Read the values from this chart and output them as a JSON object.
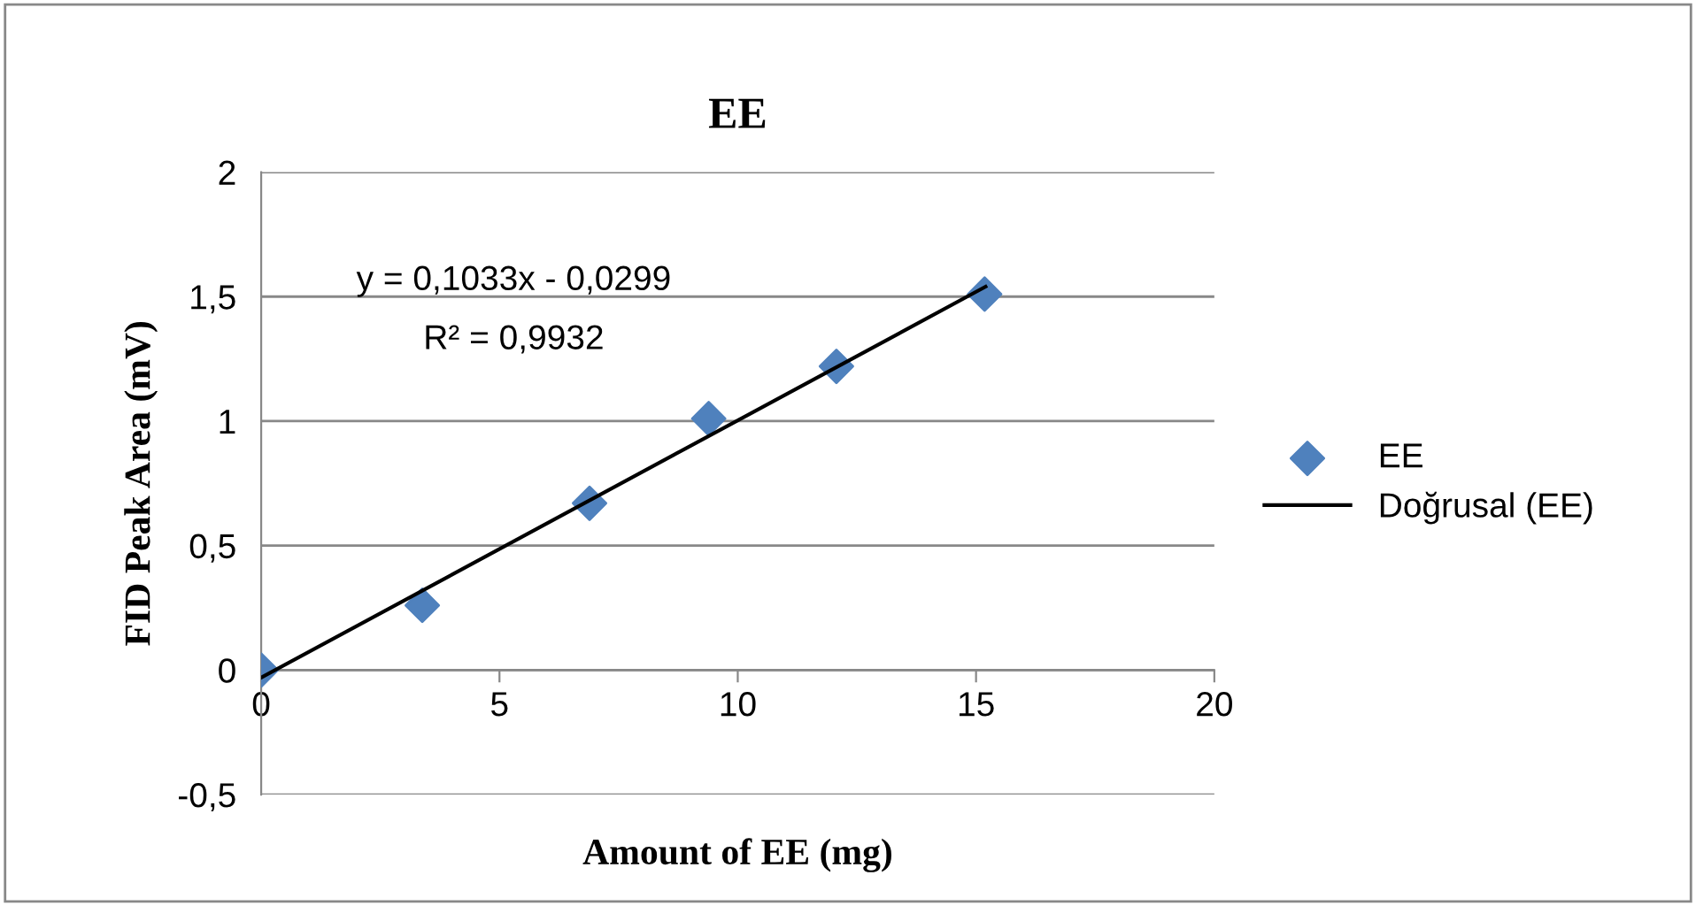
{
  "chart_data": {
    "type": "scatter",
    "title": "EE",
    "xlabel": "Amount of EE (mg)",
    "ylabel": "FID Peak Area (mV)",
    "series": [
      {
        "name": "EE",
        "color": "#4f81bd",
        "marker": "diamond",
        "x": [
          0,
          3.38,
          6.89,
          9.39,
          12.07,
          15.18
        ],
        "values": [
          0,
          0.26,
          0.67,
          1.01,
          1.22,
          1.51
        ]
      },
      {
        "name": "Doğrusal (EE)",
        "type": "line",
        "color": "#000000",
        "marker": "none",
        "line_style": "solid",
        "x": [
          0,
          15.2
        ],
        "values": [
          -0.03,
          1.54
        ]
      }
    ],
    "annotations": [
      "y = 0,1033x - 0,0299",
      "R² = 0,9932"
    ],
    "xlim": [
      0,
      20
    ],
    "xticks": [
      0,
      5,
      10,
      15,
      20
    ],
    "ylim": [
      -0.5,
      2
    ],
    "yticks": [
      {
        "value": -0.5,
        "label": "-0,5"
      },
      0,
      {
        "value": 0.5,
        "label": "0,5"
      },
      1,
      {
        "value": 1.5,
        "label": "1,5"
      },
      2
    ],
    "grid": "y",
    "legend": "right"
  }
}
